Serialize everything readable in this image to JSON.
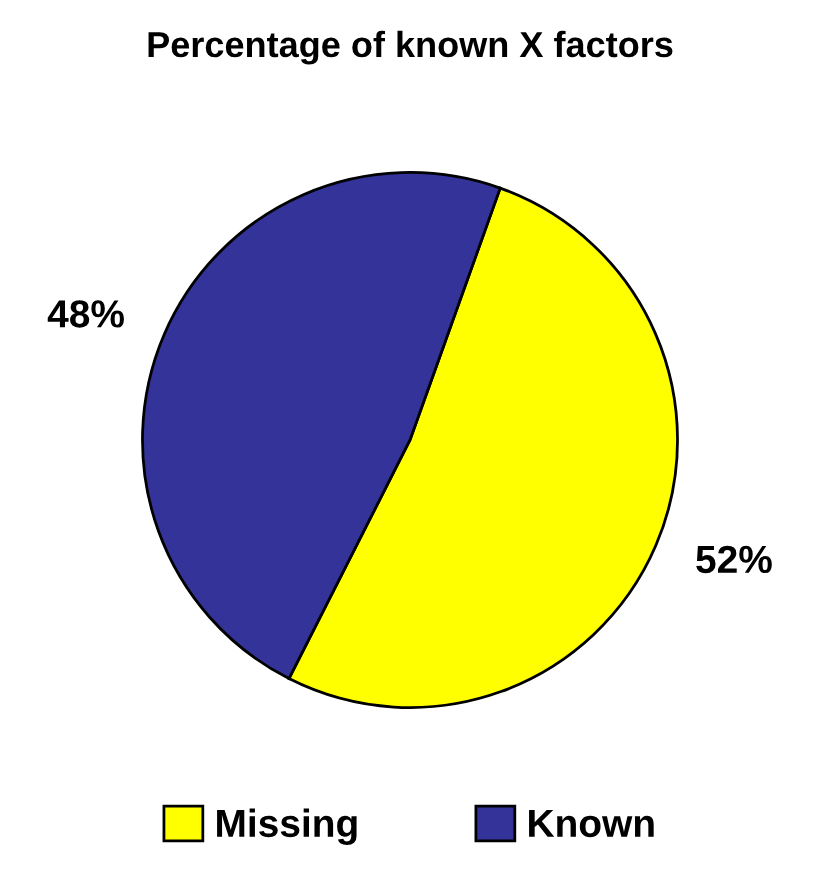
{
  "chart_data": {
    "type": "pie",
    "title": "Percentage of known X factors",
    "categories": [
      "Missing",
      "Known"
    ],
    "values": [
      52,
      48
    ],
    "colors": [
      "#ffff00",
      "#333399"
    ],
    "value_labels": [
      "52%",
      "48%"
    ],
    "legend": "bottom"
  }
}
